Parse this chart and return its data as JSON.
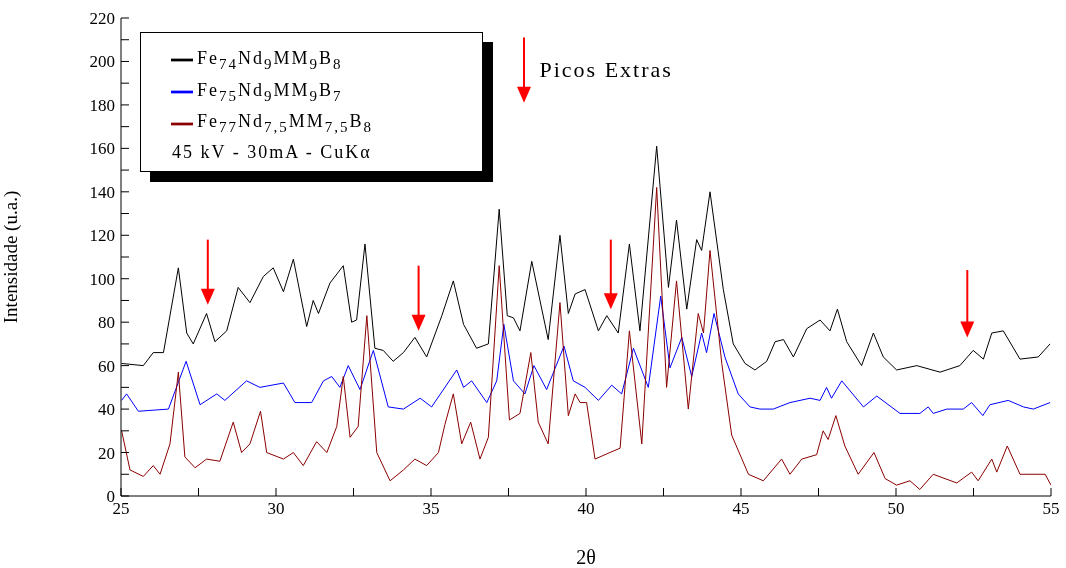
{
  "chart_data": {
    "type": "line",
    "xlabel": "2θ",
    "ylabel": "Intensidade (u.a.)",
    "xlim": [
      25,
      55
    ],
    "xticks": [
      25,
      {
        "value": 27.5,
        "label": null
      },
      30,
      {
        "value": 32.5,
        "label": null
      },
      35,
      {
        "value": 37.5,
        "label": null
      },
      40,
      {
        "value": 42.5,
        "label": null
      },
      45,
      {
        "value": 47.5,
        "label": null
      },
      50,
      {
        "value": 52.5,
        "label": null
      },
      55
    ],
    "ylim": [
      0,
      220
    ],
    "yticks": [
      0,
      {
        "value": 10,
        "label": null
      },
      20,
      {
        "value": 30,
        "label": null
      },
      40,
      {
        "value": 50,
        "label": null
      },
      60,
      {
        "value": 70,
        "label": null
      },
      80,
      {
        "value": 90,
        "label": null
      },
      100,
      {
        "value": 110,
        "label": null
      },
      120,
      {
        "value": 130,
        "label": null
      },
      140,
      {
        "value": 150,
        "label": null
      },
      160,
      {
        "value": 170,
        "label": null
      },
      180,
      {
        "value": 190,
        "label": null
      },
      200,
      {
        "value": 210,
        "label": null
      },
      220
    ],
    "legend": "top left",
    "grid": false,
    "marker": "none",
    "line_style": "solid",
    "annotations": [
      "45 kV - 30mA - CuKα",
      "Picos Extras"
    ],
    "series": [
      {
        "name": "Fe$_{74}$Nd$_{9}$MM$_{9}$B$_{8}$",
        "color": "#000000",
        "x": [
          25.02,
          25.72,
          26.04,
          26.37,
          26.85,
          27.12,
          27.33,
          27.76,
          28.03,
          28.41,
          28.78,
          29.16,
          29.59,
          29.91,
          30.24,
          30.56,
          30.99,
          31.2,
          31.37,
          31.74,
          32.17,
          32.44,
          32.6,
          32.87,
          33.19,
          33.46,
          33.78,
          34.11,
          34.48,
          34.86,
          35.35,
          35.72,
          36.05,
          36.47,
          36.85,
          37.2,
          37.46,
          37.66,
          37.87,
          38.25,
          38.78,
          39.16,
          39.43,
          39.65,
          39.97,
          40.4,
          40.67,
          41.04,
          41.4,
          41.74,
          42.28,
          42.66,
          42.92,
          43.25,
          43.57,
          43.73,
          44.0,
          44.43,
          44.75,
          45.13,
          45.45,
          45.83,
          46.1,
          46.37,
          46.69,
          47.12,
          47.55,
          47.87,
          48.11,
          48.41,
          48.89,
          49.27,
          49.59,
          50.02,
          50.67,
          51.42,
          52.06,
          52.49,
          52.82,
          53.09,
          53.46,
          54.0,
          54.59,
          54.97
        ],
        "values": [
          61,
          60,
          66,
          66,
          105,
          75,
          70,
          84,
          71,
          76,
          96,
          89,
          101,
          105,
          94,
          109,
          78,
          90,
          84,
          98,
          106,
          80,
          81,
          116,
          68,
          67,
          62,
          66,
          73,
          64,
          83,
          99,
          79,
          68,
          70,
          132,
          83,
          82,
          76,
          108,
          72,
          120,
          84,
          93,
          95,
          76,
          83,
          75,
          116,
          76,
          161,
          96,
          127,
          86,
          118,
          113,
          140,
          95,
          70,
          61,
          58,
          62,
          71,
          72,
          64,
          77,
          81,
          76,
          86,
          71,
          60,
          75,
          64,
          58,
          60,
          57,
          60,
          67,
          63,
          75,
          76,
          63,
          64,
          70
        ]
      },
      {
        "name": "Fe$_{75}$Nd$_{9}$MM$_{9}$B$_{7}$",
        "color": "#0000ff",
        "x": [
          25.02,
          25.18,
          25.56,
          26.53,
          27.1,
          27.55,
          28.09,
          28.35,
          29.05,
          29.48,
          30.24,
          30.61,
          31.15,
          31.53,
          31.8,
          32.06,
          32.33,
          32.71,
          33.14,
          33.62,
          34.11,
          34.65,
          35.02,
          35.83,
          36.05,
          36.31,
          36.8,
          37.12,
          37.35,
          37.66,
          38.03,
          38.32,
          38.73,
          39.29,
          39.59,
          39.97,
          40.4,
          40.83,
          41.15,
          41.53,
          42.01,
          42.41,
          42.71,
          43.09,
          43.41,
          43.73,
          43.89,
          44.13,
          44.48,
          44.91,
          45.29,
          45.61,
          46.04,
          46.58,
          47.23,
          47.55,
          47.76,
          47.92,
          48.25,
          48.95,
          49.38,
          50.13,
          50.77,
          51.04,
          51.2,
          51.64,
          52.17,
          52.44,
          52.8,
          53.03,
          53.62,
          54.11,
          54.43,
          54.97
        ],
        "values": [
          44,
          47,
          39,
          40,
          62,
          42,
          47,
          44,
          53,
          50,
          52,
          43,
          43,
          53,
          55,
          50,
          60,
          49,
          67,
          41,
          40,
          45,
          41,
          58,
          50,
          53,
          43,
          53,
          79,
          53,
          47,
          60,
          49,
          69,
          53,
          50,
          44,
          51,
          47,
          68,
          50,
          92,
          59,
          73,
          55,
          75,
          66,
          84,
          64,
          47,
          41,
          40,
          40,
          43,
          45,
          44,
          50,
          45,
          53,
          41,
          46,
          38,
          38,
          41,
          38,
          40,
          40,
          43,
          37,
          42,
          44,
          41,
          40,
          43
        ]
      },
      {
        "name": "Fe$_{77}$Nd$_{7,5}$MM$_{7,5}$B$_{8}$",
        "color": "#8b0000",
        "x": [
          25.02,
          25.29,
          25.72,
          26.04,
          26.26,
          26.58,
          26.85,
          27.06,
          27.39,
          27.76,
          28.19,
          28.62,
          28.89,
          29.16,
          29.5,
          29.7,
          30.24,
          30.56,
          30.88,
          31.31,
          31.64,
          31.96,
          32.17,
          32.39,
          32.65,
          32.93,
          33.25,
          33.68,
          34.11,
          34.48,
          34.86,
          35.24,
          35.45,
          35.72,
          35.99,
          36.28,
          36.58,
          36.85,
          37.2,
          37.53,
          37.87,
          38.22,
          38.46,
          38.78,
          39.16,
          39.43,
          39.65,
          39.81,
          40.02,
          40.29,
          40.77,
          41.1,
          41.4,
          41.8,
          42.28,
          42.6,
          42.92,
          43.3,
          43.62,
          43.79,
          44.0,
          44.38,
          44.7,
          45.24,
          45.72,
          46.31,
          46.58,
          46.96,
          47.44,
          47.65,
          47.81,
          48.06,
          48.35,
          48.78,
          49.29,
          49.65,
          50.02,
          50.45,
          50.77,
          51.2,
          51.96,
          52.44,
          52.65,
          53.09,
          53.25,
          53.59,
          54.0,
          54.81,
          55.0
        ],
        "values": [
          30,
          12,
          9,
          14,
          10,
          24,
          57,
          18,
          13,
          17,
          16,
          34,
          20,
          24,
          39,
          20,
          17,
          20,
          14,
          25,
          20,
          32,
          55,
          27,
          32,
          83,
          20,
          7,
          12,
          17,
          14,
          20,
          33,
          47,
          24,
          34,
          17,
          27,
          106,
          35,
          38,
          66,
          34,
          24,
          89,
          37,
          47,
          43,
          43,
          17,
          20,
          22,
          76,
          24,
          142,
          50,
          99,
          40,
          84,
          75,
          113,
          61,
          28,
          10,
          7,
          17,
          10,
          17,
          19,
          30,
          26,
          37,
          23,
          10,
          20,
          8,
          5,
          7,
          3,
          10,
          6,
          11,
          7,
          17,
          11,
          23,
          10,
          10,
          5
        ]
      }
    ]
  }
}
